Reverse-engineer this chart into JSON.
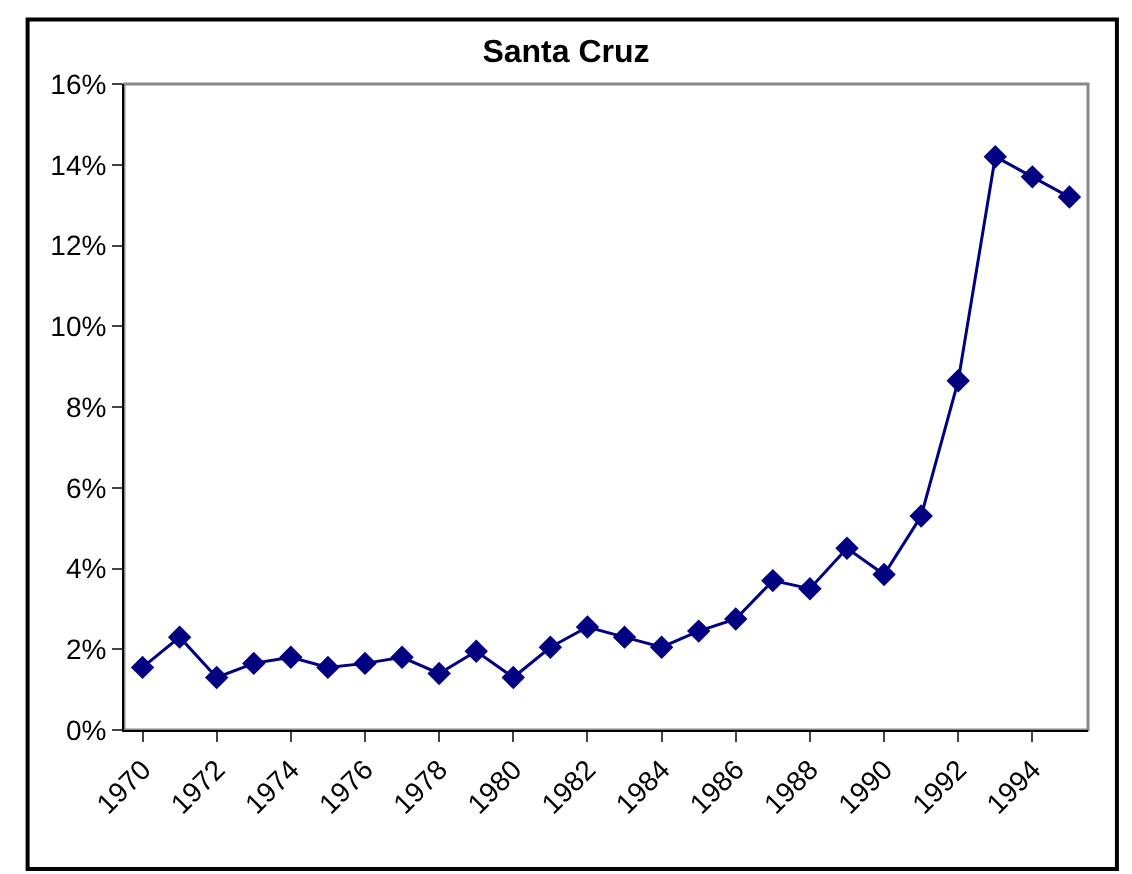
{
  "chart_data": {
    "type": "line",
    "title": "Santa Cruz",
    "categories": [
      "1970",
      null,
      "1972",
      null,
      "1974",
      null,
      "1976",
      null,
      "1978",
      null,
      "1980",
      null,
      "1982",
      null,
      "1984",
      null,
      "1986",
      null,
      "1988",
      null,
      "1990",
      null,
      "1992",
      null,
      "1994",
      null
    ],
    "series": [
      {
        "color": "#000080",
        "values": [
          1.55,
          2.3,
          1.3,
          1.65,
          1.8,
          1.55,
          1.65,
          1.8,
          1.4,
          1.95,
          1.3,
          2.05,
          2.55,
          2.3,
          2.05,
          2.45,
          2.75,
          3.7,
          3.5,
          4.5,
          3.85,
          5.3,
          8.65,
          14.2,
          13.7,
          13.2
        ]
      }
    ],
    "ylim": [
      0,
      16
    ],
    "yticks": [
      {
        "value": 0,
        "label": "0%"
      },
      {
        "value": 2,
        "label": "2%"
      },
      {
        "value": 4,
        "label": "4%"
      },
      {
        "value": 6,
        "label": "6%"
      },
      {
        "value": 8,
        "label": "8%"
      },
      {
        "value": 10,
        "label": "10%"
      },
      {
        "value": 12,
        "label": "12%"
      },
      {
        "value": 14,
        "label": "14%"
      },
      {
        "value": 16,
        "label": "16%"
      }
    ],
    "marker": "diamond",
    "line_style": "solid",
    "grid": false
  }
}
